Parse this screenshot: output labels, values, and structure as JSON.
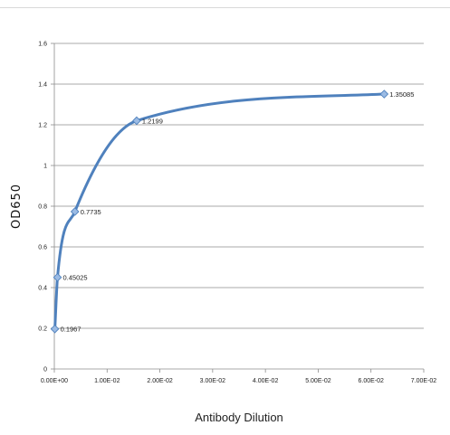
{
  "chart_data": {
    "type": "scatter",
    "smooth": true,
    "title": "",
    "xlabel": "Antibody Dilution",
    "ylabel": "OD650",
    "xlim": [
      0,
      0.07
    ],
    "ylim": [
      0,
      1.6
    ],
    "x_ticks": [
      {
        "value": 0.0,
        "label": "0.00E+00"
      },
      {
        "value": 0.01,
        "label": "1.00E-02"
      },
      {
        "value": 0.02,
        "label": "2.00E-02"
      },
      {
        "value": 0.03,
        "label": "3.00E-02"
      },
      {
        "value": 0.04,
        "label": "4.00E-02"
      },
      {
        "value": 0.05,
        "label": "5.00E-02"
      },
      {
        "value": 0.06,
        "label": "6.00E-02"
      },
      {
        "value": 0.07,
        "label": "7.00E-02"
      }
    ],
    "y_ticks": [
      {
        "value": 0,
        "label": "0"
      },
      {
        "value": 0.2,
        "label": "0.2"
      },
      {
        "value": 0.4,
        "label": "0.4"
      },
      {
        "value": 0.6,
        "label": "0.6"
      },
      {
        "value": 0.8,
        "label": "0.8"
      },
      {
        "value": 1,
        "label": "1"
      },
      {
        "value": 1.2,
        "label": "1.2"
      },
      {
        "value": 1.4,
        "label": "1.4"
      },
      {
        "value": 1.6,
        "label": "1.6"
      }
    ],
    "grid": "horizontal",
    "series": [
      {
        "color": "#4f81bd",
        "marker_color": "#9bbbe4",
        "points": [
          {
            "x": 0.0001,
            "y": 0.1967,
            "label": "0.1967"
          },
          {
            "x": 0.0006,
            "y": 0.45025,
            "label": "0.45025"
          },
          {
            "x": 0.0039,
            "y": 0.7735,
            "label": "0.7735"
          },
          {
            "x": 0.0156,
            "y": 1.2199,
            "label": "1.2199"
          },
          {
            "x": 0.0625,
            "y": 1.35085,
            "label": "1.35085"
          }
        ]
      }
    ]
  }
}
